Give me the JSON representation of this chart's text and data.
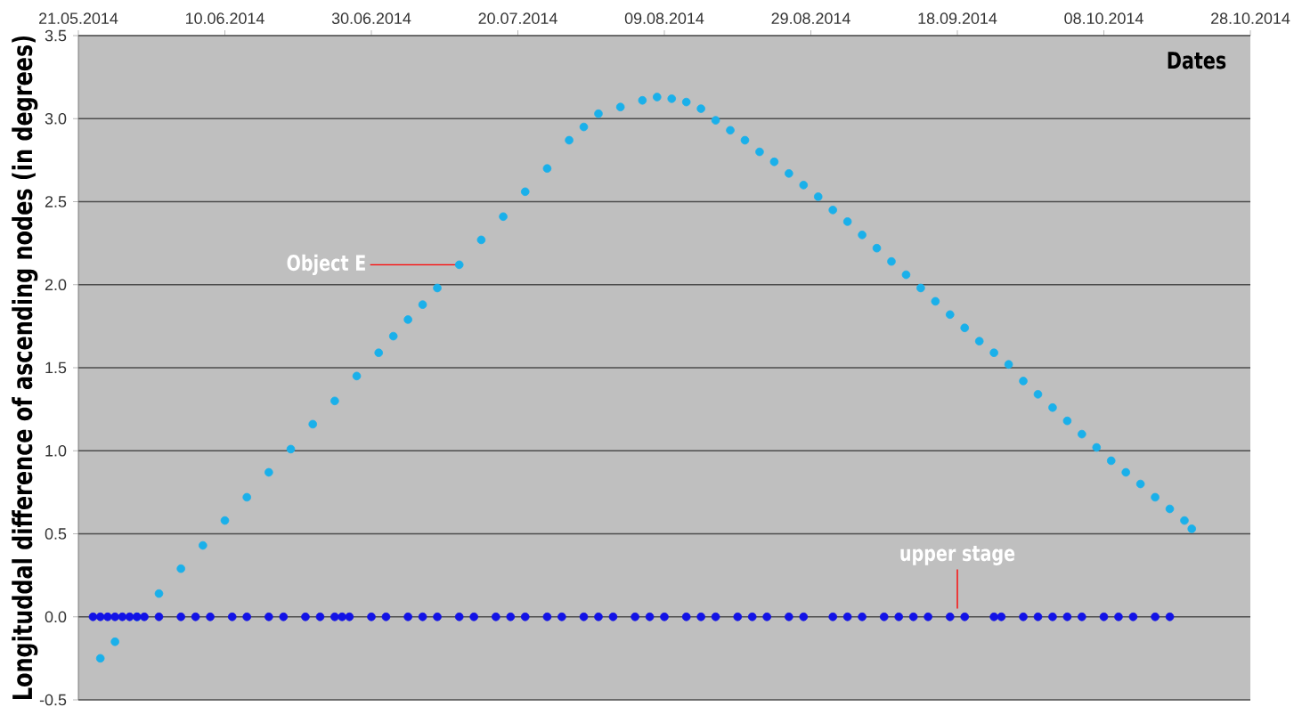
{
  "chart_data": {
    "type": "scatter",
    "xlabel": "Dates",
    "ylabel": "Longituddal difference of ascending nodes (in degrees)",
    "xlim": [
      "2014-05-21",
      "2014-10-28"
    ],
    "xticks": [
      {
        "value": "2014-05-21",
        "label": "21.05.2014"
      },
      {
        "value": "2014-06-10",
        "label": "10.06.2014"
      },
      {
        "value": "2014-06-30",
        "label": "30.06.2014"
      },
      {
        "value": "2014-07-20",
        "label": "20.07.2014"
      },
      {
        "value": "2014-08-09",
        "label": "09.08.2014"
      },
      {
        "value": "2014-08-29",
        "label": "29.08.2014"
      },
      {
        "value": "2014-09-18",
        "label": "18.09.2014"
      },
      {
        "value": "2014-10-08",
        "label": "08.10.2014"
      },
      {
        "value": "2014-10-28",
        "label": "28.10.2014"
      }
    ],
    "ylim": [
      -0.5,
      3.5
    ],
    "yticks": [
      {
        "value": -0.5,
        "label": "-0.5"
      },
      {
        "value": 0,
        "label": "0.0"
      },
      {
        "value": 0.5,
        "label": "0.5"
      },
      {
        "value": 1,
        "label": "1.0"
      },
      {
        "value": 1.5,
        "label": "1.5"
      },
      {
        "value": 2,
        "label": "2.0"
      },
      {
        "value": 2.5,
        "label": "2.5"
      },
      {
        "value": 3,
        "label": "3.0"
      },
      {
        "value": 3.5,
        "label": "3.5"
      }
    ],
    "grid": "y",
    "marker": "circle",
    "series": [
      {
        "color": "#1ab0ea",
        "x": [
          "2014-05-24",
          "2014-05-26",
          "2014-05-29",
          "2014-06-01",
          "2014-06-04",
          "2014-06-07",
          "2014-06-10",
          "2014-06-13",
          "2014-06-16",
          "2014-06-19",
          "2014-06-22",
          "2014-06-25",
          "2014-06-28",
          "2014-07-01",
          "2014-07-03",
          "2014-07-05",
          "2014-07-07",
          "2014-07-09",
          "2014-07-12",
          "2014-07-15",
          "2014-07-18",
          "2014-07-21",
          "2014-07-24",
          "2014-07-27",
          "2014-07-29",
          "2014-07-31",
          "2014-08-03",
          "2014-08-06",
          "2014-08-08",
          "2014-08-10",
          "2014-08-12",
          "2014-08-14",
          "2014-08-16",
          "2014-08-18",
          "2014-08-20",
          "2014-08-22",
          "2014-08-24",
          "2014-08-26",
          "2014-08-28",
          "2014-08-30",
          "2014-09-01",
          "2014-09-03",
          "2014-09-05",
          "2014-09-07",
          "2014-09-09",
          "2014-09-11",
          "2014-09-13",
          "2014-09-15",
          "2014-09-17",
          "2014-09-19",
          "2014-09-21",
          "2014-09-23",
          "2014-09-25",
          "2014-09-27",
          "2014-09-29",
          "2014-10-01",
          "2014-10-03",
          "2014-10-05",
          "2014-10-07",
          "2014-10-09",
          "2014-10-11",
          "2014-10-13",
          "2014-10-15",
          "2014-10-17",
          "2014-10-19",
          "2014-10-20"
        ],
        "values": [
          -0.25,
          -0.15,
          0.0,
          0.14,
          0.29,
          0.43,
          0.58,
          0.72,
          0.87,
          1.01,
          1.16,
          1.3,
          1.45,
          1.59,
          1.69,
          1.79,
          1.88,
          1.98,
          2.12,
          2.27,
          2.41,
          2.56,
          2.7,
          2.87,
          2.95,
          3.03,
          3.07,
          3.11,
          3.13,
          3.12,
          3.1,
          3.06,
          2.99,
          2.93,
          2.87,
          2.8,
          2.74,
          2.67,
          2.6,
          2.53,
          2.45,
          2.38,
          2.3,
          2.22,
          2.14,
          2.06,
          1.98,
          1.9,
          1.82,
          1.74,
          1.66,
          1.59,
          1.52,
          1.42,
          1.34,
          1.26,
          1.18,
          1.1,
          1.02,
          0.94,
          0.87,
          0.8,
          0.72,
          0.65,
          0.58,
          0.53
        ]
      },
      {
        "color": "#1212e6",
        "x": [
          "2014-05-23",
          "2014-05-24",
          "2014-05-25",
          "2014-05-26",
          "2014-05-27",
          "2014-05-28",
          "2014-05-29",
          "2014-05-30",
          "2014-06-01",
          "2014-06-04",
          "2014-06-06",
          "2014-06-08",
          "2014-06-11",
          "2014-06-13",
          "2014-06-16",
          "2014-06-18",
          "2014-06-21",
          "2014-06-23",
          "2014-06-25",
          "2014-06-26",
          "2014-06-27",
          "2014-06-30",
          "2014-07-02",
          "2014-07-05",
          "2014-07-07",
          "2014-07-09",
          "2014-07-12",
          "2014-07-14",
          "2014-07-17",
          "2014-07-19",
          "2014-07-21",
          "2014-07-24",
          "2014-07-26",
          "2014-07-29",
          "2014-07-31",
          "2014-08-02",
          "2014-08-05",
          "2014-08-07",
          "2014-08-09",
          "2014-08-12",
          "2014-08-14",
          "2014-08-16",
          "2014-08-19",
          "2014-08-21",
          "2014-08-23",
          "2014-08-26",
          "2014-08-28",
          "2014-09-01",
          "2014-09-03",
          "2014-09-05",
          "2014-09-08",
          "2014-09-10",
          "2014-09-12",
          "2014-09-14",
          "2014-09-17",
          "2014-09-19",
          "2014-09-23",
          "2014-09-24",
          "2014-09-27",
          "2014-09-29",
          "2014-10-01",
          "2014-10-03",
          "2014-10-05",
          "2014-10-08",
          "2014-10-10",
          "2014-10-12",
          "2014-10-15",
          "2014-10-17"
        ],
        "values": [
          0,
          0,
          0,
          0,
          0,
          0,
          0,
          0,
          0,
          0,
          0,
          0,
          0,
          0,
          0,
          0,
          0,
          0,
          0,
          0,
          0,
          0,
          0,
          0,
          0,
          0,
          0,
          0,
          0,
          0,
          0,
          0,
          0,
          0,
          0,
          0,
          0,
          0,
          0,
          0,
          0,
          0,
          0,
          0,
          0,
          0,
          0,
          0,
          0,
          0,
          0,
          0,
          0,
          0,
          0,
          0,
          0,
          0,
          0,
          0,
          0,
          0,
          0,
          0,
          0,
          0,
          0,
          0
        ]
      }
    ],
    "annotations": [
      {
        "text": "Object E",
        "x": "2014-07-12",
        "y": 2.12
      },
      {
        "text": "upper stage",
        "x": "2014-09-18",
        "y": 0.05
      }
    ]
  }
}
